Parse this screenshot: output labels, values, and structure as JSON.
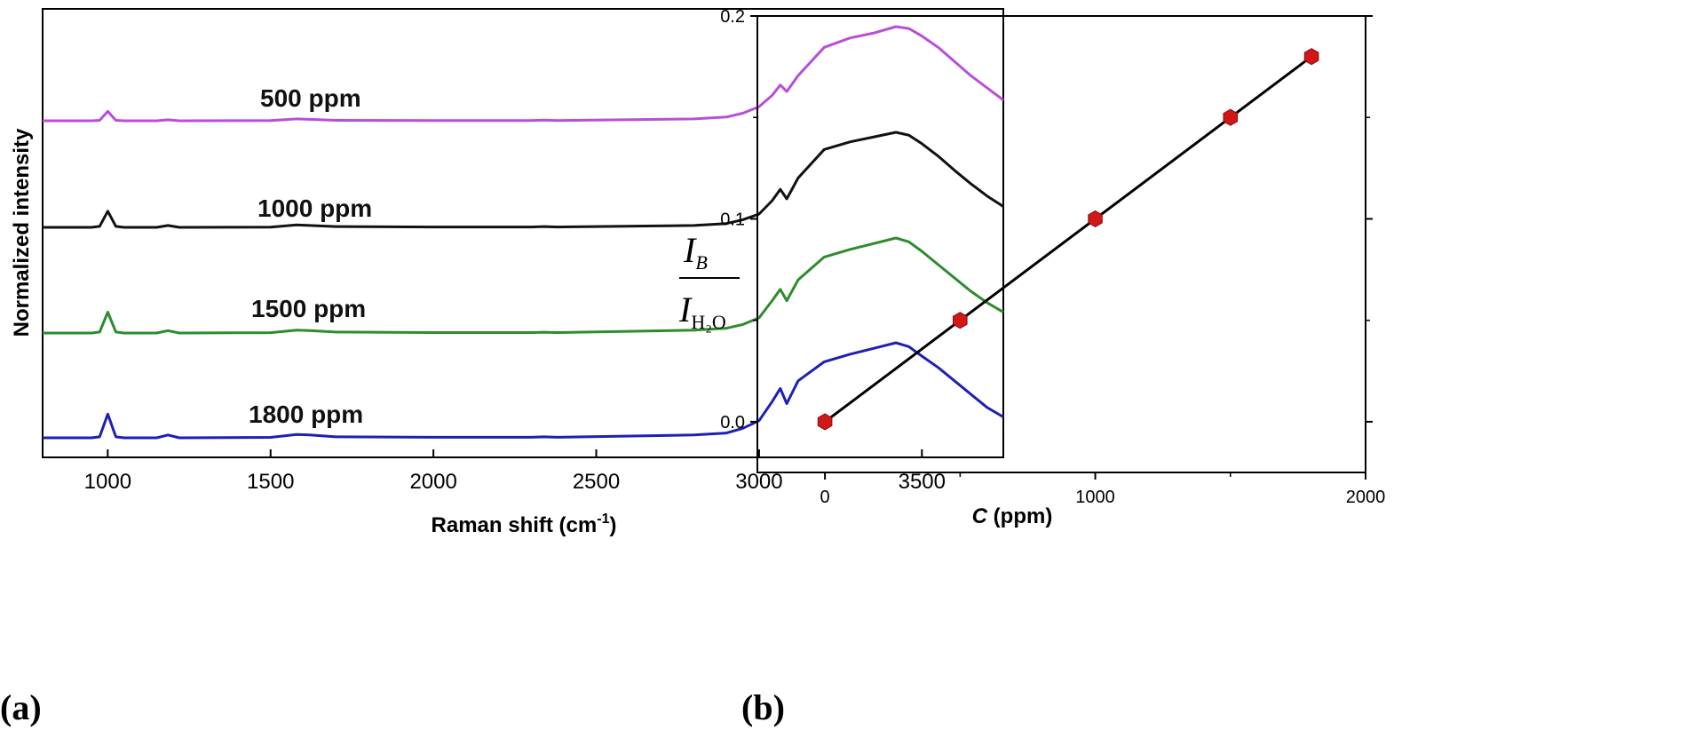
{
  "chart_data": [
    {
      "type": "line",
      "panel_label": "(a)",
      "xlabel": "Raman shift (cm",
      "xlabel_sup": "-1",
      "xlabel_end": ")",
      "ylabel": "Normalized intensity",
      "xlim": [
        800,
        3750
      ],
      "xticks": [
        "1000",
        "1500",
        "2000",
        "2500",
        "3000",
        "3500"
      ],
      "x": [
        800,
        950,
        975,
        1000,
        1025,
        1050,
        1150,
        1185,
        1220,
        1500,
        1580,
        1620,
        1700,
        2000,
        2300,
        2340,
        2380,
        2800,
        2900,
        2950,
        3000,
        3040,
        3065,
        3085,
        3120,
        3200,
        3280,
        3350,
        3420,
        3460,
        3500,
        3550,
        3600,
        3650,
        3700,
        3750
      ],
      "series": [
        {
          "name": "500 ppm",
          "color": "#b94ed9",
          "values": [
            0.0,
            0.0,
            0.005,
            0.1,
            0.005,
            0.0,
            0.0,
            0.01,
            0.0,
            0.002,
            0.02,
            0.015,
            0.005,
            0.003,
            0.003,
            0.008,
            0.003,
            0.02,
            0.04,
            0.08,
            0.15,
            0.27,
            0.38,
            0.31,
            0.48,
            0.78,
            0.88,
            0.93,
            1.0,
            0.98,
            0.9,
            0.78,
            0.63,
            0.48,
            0.35,
            0.22
          ]
        },
        {
          "name": "1000 ppm",
          "color": "#111111",
          "values": [
            0.0,
            0.0,
            0.01,
            0.17,
            0.01,
            0.0,
            0.0,
            0.02,
            0.0,
            0.003,
            0.025,
            0.02,
            0.008,
            0.004,
            0.004,
            0.008,
            0.004,
            0.02,
            0.04,
            0.08,
            0.14,
            0.28,
            0.4,
            0.3,
            0.52,
            0.82,
            0.9,
            0.95,
            1.0,
            0.97,
            0.88,
            0.75,
            0.6,
            0.46,
            0.33,
            0.22
          ]
        },
        {
          "name": "1500 ppm",
          "color": "#2e8b2e",
          "values": [
            0.0,
            0.0,
            0.01,
            0.22,
            0.01,
            0.0,
            0.0,
            0.025,
            0.0,
            0.004,
            0.03,
            0.025,
            0.01,
            0.005,
            0.005,
            0.008,
            0.005,
            0.03,
            0.05,
            0.09,
            0.16,
            0.34,
            0.46,
            0.34,
            0.56,
            0.8,
            0.88,
            0.94,
            1.0,
            0.96,
            0.86,
            0.72,
            0.58,
            0.44,
            0.32,
            0.22
          ]
        },
        {
          "name": "1800 ppm",
          "color": "#1f1fb4",
          "values": [
            0.0,
            0.0,
            0.01,
            0.25,
            0.01,
            0.0,
            0.0,
            0.03,
            0.0,
            0.005,
            0.035,
            0.03,
            0.01,
            0.006,
            0.006,
            0.01,
            0.006,
            0.03,
            0.05,
            0.1,
            0.18,
            0.38,
            0.52,
            0.36,
            0.6,
            0.8,
            0.88,
            0.94,
            1.0,
            0.96,
            0.86,
            0.74,
            0.6,
            0.46,
            0.32,
            0.22
          ]
        }
      ]
    },
    {
      "type": "scatter",
      "panel_label": "(b)",
      "xlabel_italic": "C",
      "xlabel_rest": " (ppm)",
      "ylabel_numerator": "I",
      "ylabel_numerator_sub": "B",
      "ylabel_denominator": "I",
      "ylabel_denominator_sub": "H₂O",
      "xlim": [
        -250,
        2000
      ],
      "ylim": [
        -0.025,
        0.2
      ],
      "xticks": [
        "0",
        "1000",
        "2000"
      ],
      "yticks": [
        "0.0",
        "0.1",
        "0.2"
      ],
      "marker_color": "#d01818",
      "fit_line": true,
      "x": [
        0,
        500,
        1000,
        1500,
        1800
      ],
      "y": [
        0.0,
        0.05,
        0.1,
        0.15,
        0.18
      ]
    }
  ]
}
